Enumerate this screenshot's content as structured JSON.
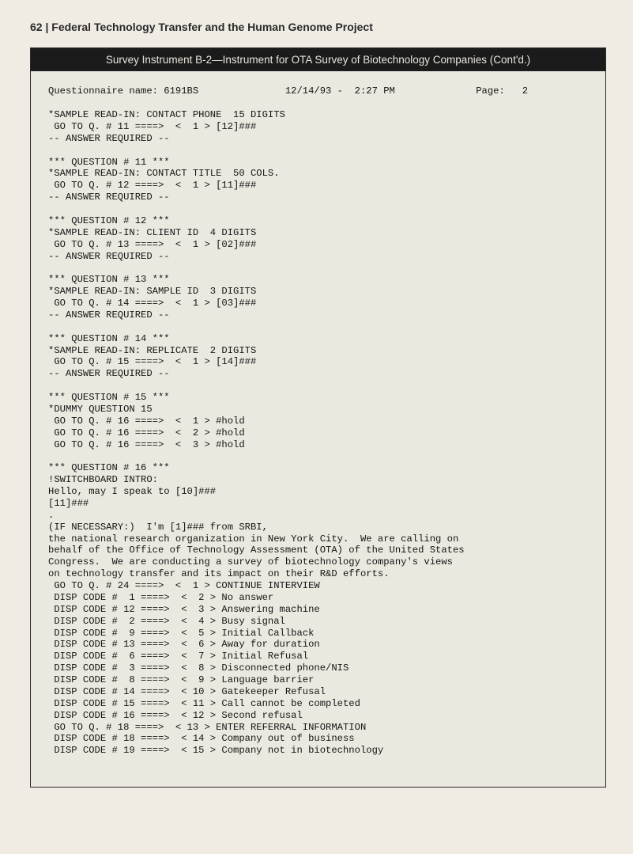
{
  "colors": {
    "page_bg": "#f0ece4",
    "panel_bg": "#ebe8df",
    "panel_border": "#2a2a2a",
    "bar_bg": "#1b1b1b",
    "bar_text": "#e8e5dc",
    "body_text": "#151515",
    "head_text": "#2a2a2a"
  },
  "typography": {
    "heading_font": "Arial",
    "heading_size_pt": 10.5,
    "heading_weight": "bold",
    "mono_font": "Courier New",
    "mono_size_pt": 9.2,
    "bar_size_pt": 10
  },
  "running_head": "62 | Federal Technology Transfer and the Human Genome Project",
  "instrument_bar": "Survey Instrument B-2—Instrument for OTA Survey of Biotechnology Companies (Cont'd.)",
  "meta_line": "Questionnaire name: 6191BS               12/14/93 -  2:27 PM              Page:   2",
  "body_text": "*SAMPLE READ-IN: CONTACT PHONE  15 DIGITS\n GO TO Q. # 11 ====>  <  1 > [12]###\n-- ANSWER REQUIRED --\n\n*** QUESTION # 11 ***\n*SAMPLE READ-IN: CONTACT TITLE  50 COLS.\n GO TO Q. # 12 ====>  <  1 > [11]###\n-- ANSWER REQUIRED --\n\n*** QUESTION # 12 ***\n*SAMPLE READ-IN: CLIENT ID  4 DIGITS\n GO TO Q. # 13 ====>  <  1 > [02]###\n-- ANSWER REQUIRED --\n\n*** QUESTION # 13 ***\n*SAMPLE READ-IN: SAMPLE ID  3 DIGITS\n GO TO Q. # 14 ====>  <  1 > [03]###\n-- ANSWER REQUIRED --\n\n*** QUESTION # 14 ***\n*SAMPLE READ-IN: REPLICATE  2 DIGITS\n GO TO Q. # 15 ====>  <  1 > [14]###\n-- ANSWER REQUIRED --\n\n*** QUESTION # 15 ***\n*DUMMY QUESTION 15\n GO TO Q. # 16 ====>  <  1 > #hold\n GO TO Q. # 16 ====>  <  2 > #hold\n GO TO Q. # 16 ====>  <  3 > #hold\n\n*** QUESTION # 16 ***\n!SWITCHBOARD INTRO:\nHello, may I speak to [10]###\n[11]###\n.\n(IF NECESSARY:)  I'm [1]### from SRBI,\nthe national research organization in New York City.  We are calling on\nbehalf of the Office of Technology Assessment (OTA) of the United States\nCongress.  We are conducting a survey of biotechnology company's views\non technology transfer and its impact on their R&D efforts.\n GO TO Q. # 24 ====>  <  1 > CONTINUE INTERVIEW\n DISP CODE #  1 ====>  <  2 > No answer\n DISP CODE # 12 ====>  <  3 > Answering machine\n DISP CODE #  2 ====>  <  4 > Busy signal\n DISP CODE #  9 ====>  <  5 > Initial Callback\n DISP CODE # 13 ====>  <  6 > Away for duration\n DISP CODE #  6 ====>  <  7 > Initial Refusal\n DISP CODE #  3 ====>  <  8 > Disconnected phone/NIS\n DISP CODE #  8 ====>  <  9 > Language barrier\n DISP CODE # 14 ====>  < 10 > Gatekeeper Refusal\n DISP CODE # 15 ====>  < 11 > Call cannot be completed\n DISP CODE # 16 ====>  < 12 > Second refusal\n GO TO Q. # 18 ====>  < 13 > ENTER REFERRAL INFORMATION\n DISP CODE # 18 ====>  < 14 > Company out of business\n DISP CODE # 19 ====>  < 15 > Company not in biotechnology"
}
